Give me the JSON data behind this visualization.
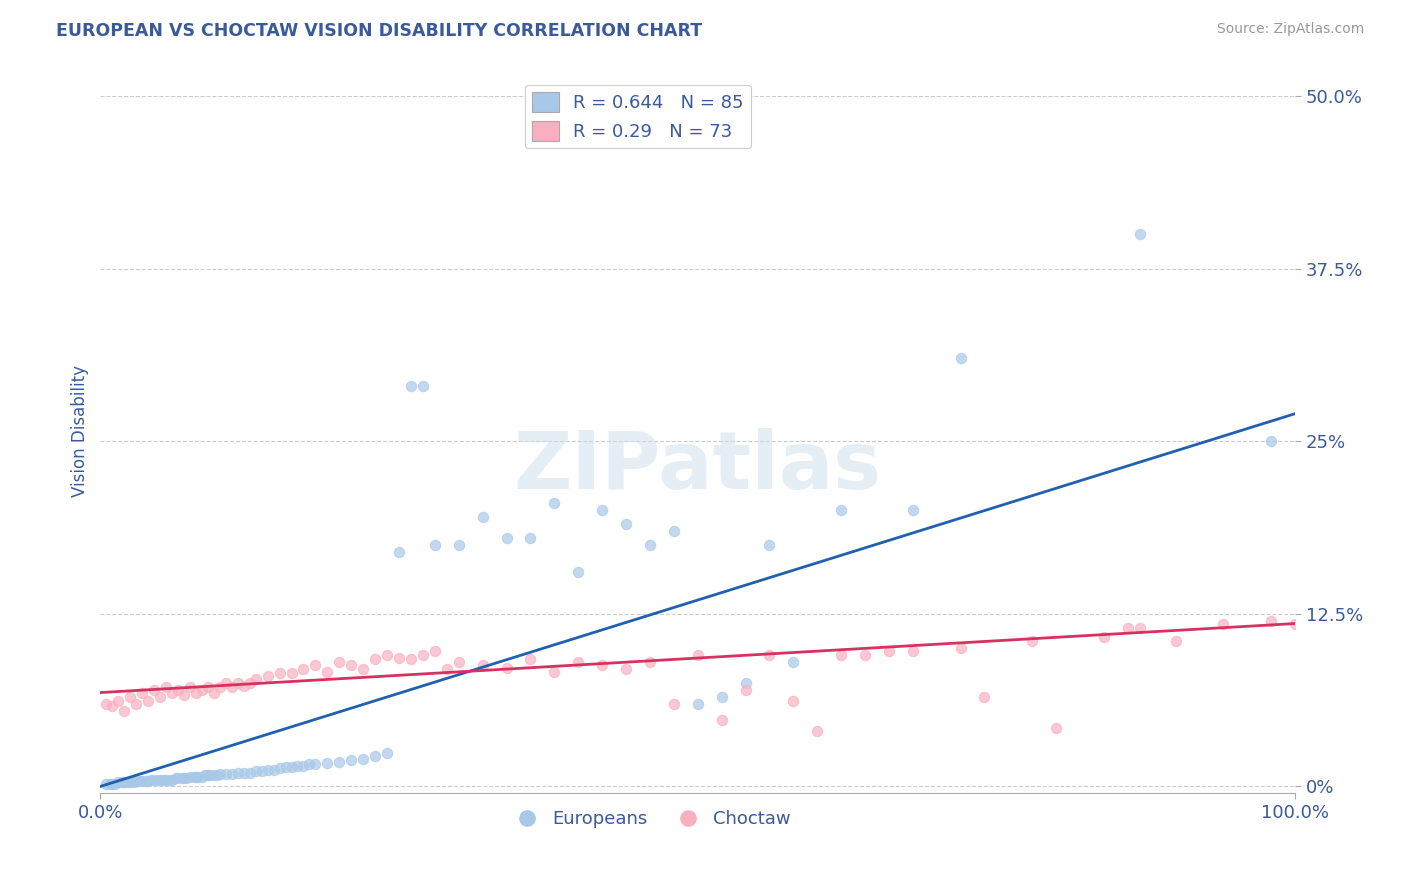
{
  "title": "EUROPEAN VS CHOCTAW VISION DISABILITY CORRELATION CHART",
  "source_text": "Source: ZipAtlas.com",
  "ylabel": "Vision Disability",
  "xlim": [
    0.0,
    1.0
  ],
  "ylim": [
    -0.005,
    0.52
  ],
  "yticks": [
    0.0,
    0.125,
    0.25,
    0.375,
    0.5
  ],
  "ytick_labels": [
    "0%",
    "12.5%",
    "25%",
    "37.5%",
    "50.0%"
  ],
  "xticks": [
    0.0,
    1.0
  ],
  "xtick_labels": [
    "0.0%",
    "100.0%"
  ],
  "european_R": 0.644,
  "european_N": 85,
  "choctaw_R": 0.29,
  "choctaw_N": 73,
  "european_color": "#a8c8e8",
  "choctaw_color": "#f8b0c0",
  "european_line_color": "#2060b0",
  "choctaw_line_color": "#d83060",
  "title_color": "#3a5a9a",
  "label_color": "#3a5a9a",
  "background_color": "#ffffff",
  "grid_color": "#cccccc",
  "watermark": "ZIPatlas",
  "legend_label_european": "Europeans",
  "legend_label_choctaw": "Choctaw",
  "eu_line_x0": 0.0,
  "eu_line_y0": 0.0,
  "eu_line_x1": 1.0,
  "eu_line_y1": 0.27,
  "ch_line_x0": 0.0,
  "ch_line_y0": 0.068,
  "ch_line_x1": 1.0,
  "ch_line_y1": 0.118,
  "european_scatter_x": [
    0.005,
    0.008,
    0.01,
    0.012,
    0.015,
    0.018,
    0.02,
    0.022,
    0.025,
    0.028,
    0.03,
    0.033,
    0.035,
    0.038,
    0.04,
    0.042,
    0.045,
    0.048,
    0.05,
    0.053,
    0.055,
    0.058,
    0.06,
    0.063,
    0.065,
    0.068,
    0.07,
    0.072,
    0.075,
    0.078,
    0.08,
    0.082,
    0.085,
    0.088,
    0.09,
    0.092,
    0.095,
    0.098,
    0.1,
    0.105,
    0.11,
    0.115,
    0.12,
    0.125,
    0.13,
    0.135,
    0.14,
    0.145,
    0.15,
    0.155,
    0.16,
    0.165,
    0.17,
    0.175,
    0.18,
    0.19,
    0.2,
    0.21,
    0.22,
    0.23,
    0.24,
    0.25,
    0.26,
    0.27,
    0.28,
    0.3,
    0.32,
    0.34,
    0.36,
    0.38,
    0.4,
    0.42,
    0.44,
    0.46,
    0.48,
    0.5,
    0.52,
    0.54,
    0.56,
    0.58,
    0.62,
    0.68,
    0.72,
    0.87,
    0.98
  ],
  "european_scatter_y": [
    0.002,
    0.002,
    0.002,
    0.002,
    0.003,
    0.003,
    0.003,
    0.003,
    0.003,
    0.003,
    0.004,
    0.004,
    0.004,
    0.004,
    0.004,
    0.005,
    0.005,
    0.005,
    0.005,
    0.005,
    0.005,
    0.005,
    0.005,
    0.006,
    0.006,
    0.006,
    0.006,
    0.006,
    0.007,
    0.007,
    0.007,
    0.007,
    0.007,
    0.008,
    0.008,
    0.008,
    0.008,
    0.008,
    0.009,
    0.009,
    0.009,
    0.01,
    0.01,
    0.01,
    0.011,
    0.011,
    0.012,
    0.012,
    0.013,
    0.014,
    0.014,
    0.015,
    0.015,
    0.016,
    0.016,
    0.017,
    0.018,
    0.019,
    0.02,
    0.022,
    0.024,
    0.17,
    0.29,
    0.29,
    0.175,
    0.175,
    0.195,
    0.18,
    0.18,
    0.205,
    0.155,
    0.2,
    0.19,
    0.175,
    0.185,
    0.06,
    0.065,
    0.075,
    0.175,
    0.09,
    0.2,
    0.2,
    0.31,
    0.4,
    0.25
  ],
  "choctaw_scatter_x": [
    0.005,
    0.01,
    0.015,
    0.02,
    0.025,
    0.03,
    0.035,
    0.04,
    0.045,
    0.05,
    0.055,
    0.06,
    0.065,
    0.07,
    0.075,
    0.08,
    0.085,
    0.09,
    0.095,
    0.1,
    0.105,
    0.11,
    0.115,
    0.12,
    0.125,
    0.13,
    0.14,
    0.15,
    0.16,
    0.17,
    0.18,
    0.19,
    0.2,
    0.21,
    0.22,
    0.23,
    0.24,
    0.25,
    0.26,
    0.27,
    0.28,
    0.29,
    0.3,
    0.32,
    0.34,
    0.36,
    0.38,
    0.4,
    0.42,
    0.44,
    0.48,
    0.5,
    0.54,
    0.58,
    0.62,
    0.66,
    0.72,
    0.78,
    0.84,
    0.87,
    0.9,
    0.94,
    0.98,
    1.0,
    0.46,
    0.52,
    0.56,
    0.6,
    0.64,
    0.68,
    0.74,
    0.8,
    0.86
  ],
  "choctaw_scatter_y": [
    0.06,
    0.058,
    0.062,
    0.055,
    0.065,
    0.06,
    0.068,
    0.062,
    0.07,
    0.065,
    0.072,
    0.068,
    0.07,
    0.066,
    0.072,
    0.068,
    0.07,
    0.072,
    0.068,
    0.072,
    0.075,
    0.072,
    0.075,
    0.073,
    0.075,
    0.078,
    0.08,
    0.082,
    0.082,
    0.085,
    0.088,
    0.083,
    0.09,
    0.088,
    0.085,
    0.092,
    0.095,
    0.093,
    0.092,
    0.095,
    0.098,
    0.085,
    0.09,
    0.088,
    0.086,
    0.092,
    0.083,
    0.09,
    0.088,
    0.085,
    0.06,
    0.095,
    0.07,
    0.062,
    0.095,
    0.098,
    0.1,
    0.105,
    0.108,
    0.115,
    0.105,
    0.118,
    0.12,
    0.118,
    0.09,
    0.048,
    0.095,
    0.04,
    0.095,
    0.098,
    0.065,
    0.042,
    0.115
  ]
}
